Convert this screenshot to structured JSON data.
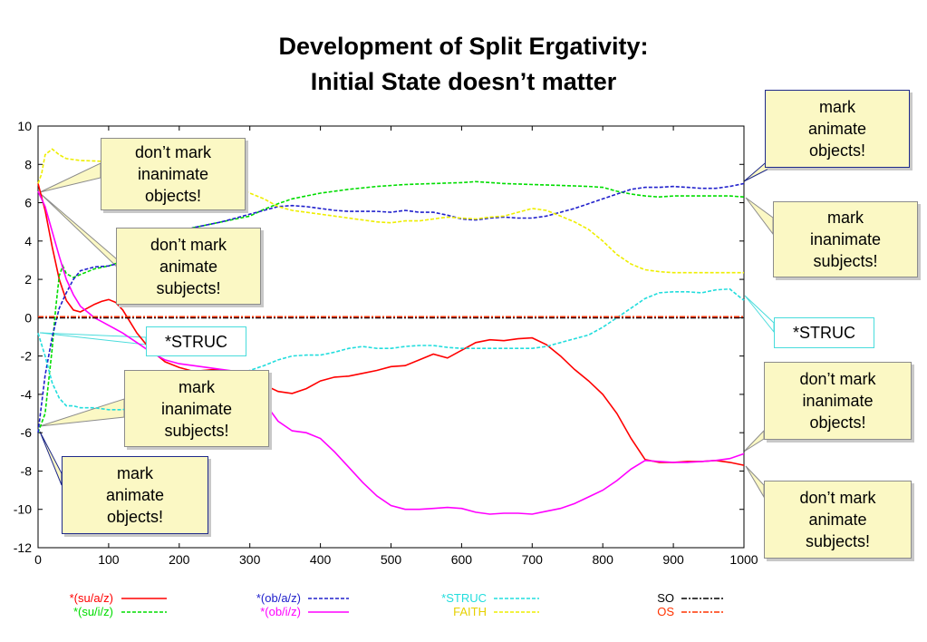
{
  "title": {
    "line1": "Development of Split Ergativity:",
    "line2": "Initial State doesn’t matter"
  },
  "chart_data": {
    "type": "line",
    "xlim": [
      0,
      1000
    ],
    "ylim": [
      -12,
      10
    ],
    "x_ticks": [
      "0",
      "100",
      "200",
      "300",
      "400",
      "500",
      "600",
      "700",
      "800",
      "900",
      "1000"
    ],
    "y_ticks": [
      "10",
      "8",
      "6",
      "4",
      "2",
      "0",
      "-2",
      "-4",
      "-6",
      "-8",
      "-10",
      "-12"
    ],
    "grid": false,
    "legend_position": "bottom",
    "series": [
      {
        "name": "*(su/a/z)",
        "color": "#ff0000",
        "dash": "solid",
        "x": [
          0,
          10,
          20,
          30,
          40,
          50,
          60,
          70,
          80,
          90,
          100,
          110,
          120,
          140,
          160,
          180,
          200,
          220,
          250,
          280,
          300,
          320,
          340,
          360,
          380,
          400,
          420,
          440,
          460,
          480,
          500,
          520,
          540,
          560,
          580,
          600,
          620,
          640,
          660,
          680,
          700,
          720,
          740,
          760,
          780,
          800,
          820,
          840,
          860,
          880,
          900,
          920,
          940,
          960,
          980,
          1000
        ],
        "y": [
          7.0,
          5.6,
          3.7,
          2.0,
          0.9,
          0.4,
          0.3,
          0.5,
          0.7,
          0.85,
          0.95,
          0.8,
          0.4,
          -0.8,
          -1.7,
          -2.3,
          -2.6,
          -2.8,
          -2.7,
          -2.9,
          -3.2,
          -3.5,
          -3.85,
          -3.95,
          -3.7,
          -3.3,
          -3.1,
          -3.05,
          -2.9,
          -2.75,
          -2.55,
          -2.5,
          -2.2,
          -1.9,
          -2.1,
          -1.7,
          -1.3,
          -1.15,
          -1.2,
          -1.1,
          -1.05,
          -1.4,
          -2.0,
          -2.7,
          -3.3,
          -4.0,
          -5.0,
          -6.3,
          -7.4,
          -7.55,
          -7.55,
          -7.5,
          -7.5,
          -7.45,
          -7.55,
          -7.7
        ]
      },
      {
        "name": "*(su/i/z)",
        "color": "#00dd00",
        "dash": "dashed",
        "x": [
          0,
          10,
          20,
          25,
          30,
          35,
          40,
          50,
          60,
          80,
          100,
          120,
          140,
          160,
          180,
          200,
          220,
          240,
          260,
          280,
          300,
          320,
          340,
          360,
          380,
          400,
          440,
          480,
          520,
          560,
          600,
          620,
          660,
          700,
          740,
          780,
          800,
          820,
          840,
          860,
          880,
          900,
          940,
          980,
          1000
        ],
        "y": [
          -6.0,
          -5.0,
          -1.6,
          0.5,
          2.2,
          2.7,
          2.3,
          2.1,
          2.25,
          2.55,
          2.7,
          2.95,
          3.3,
          3.7,
          4.1,
          4.45,
          4.7,
          4.85,
          5.0,
          5.15,
          5.3,
          5.65,
          5.95,
          6.2,
          6.35,
          6.5,
          6.7,
          6.85,
          6.95,
          7.0,
          7.05,
          7.1,
          7.0,
          6.95,
          6.9,
          6.85,
          6.8,
          6.6,
          6.45,
          6.35,
          6.3,
          6.35,
          6.35,
          6.35,
          6.3
        ]
      },
      {
        "name": "*(ob/a/z)",
        "color": "#2020cc",
        "dash": "dashed",
        "x": [
          0,
          10,
          20,
          30,
          40,
          50,
          60,
          80,
          100,
          120,
          140,
          160,
          180,
          200,
          220,
          240,
          260,
          280,
          300,
          320,
          340,
          360,
          380,
          400,
          420,
          440,
          460,
          480,
          500,
          520,
          540,
          560,
          580,
          600,
          620,
          640,
          660,
          680,
          700,
          720,
          740,
          760,
          780,
          800,
          820,
          840,
          860,
          880,
          900,
          920,
          940,
          960,
          980,
          1000
        ],
        "y": [
          -6.0,
          -3.0,
          -1.0,
          0.5,
          1.3,
          2.0,
          2.45,
          2.65,
          2.7,
          2.9,
          3.3,
          3.7,
          4.1,
          4.45,
          4.7,
          4.85,
          5.0,
          5.2,
          5.4,
          5.6,
          5.8,
          5.85,
          5.8,
          5.7,
          5.6,
          5.55,
          5.55,
          5.55,
          5.5,
          5.6,
          5.5,
          5.5,
          5.35,
          5.15,
          5.1,
          5.2,
          5.25,
          5.2,
          5.2,
          5.3,
          5.5,
          5.7,
          5.95,
          6.2,
          6.45,
          6.7,
          6.8,
          6.8,
          6.85,
          6.8,
          6.75,
          6.75,
          6.85,
          7.0
        ]
      },
      {
        "name": "*(ob/i/z)",
        "color": "#ff00ff",
        "dash": "solid",
        "x": [
          0,
          10,
          20,
          30,
          40,
          50,
          60,
          70,
          80,
          90,
          100,
          120,
          140,
          160,
          180,
          200,
          220,
          240,
          260,
          280,
          300,
          320,
          340,
          360,
          380,
          400,
          420,
          440,
          460,
          480,
          500,
          520,
          540,
          560,
          580,
          600,
          620,
          640,
          660,
          680,
          700,
          720,
          740,
          760,
          780,
          800,
          820,
          840,
          860,
          880,
          900,
          920,
          940,
          960,
          980,
          1000
        ],
        "y": [
          6.6,
          5.8,
          4.5,
          3.2,
          2.0,
          1.2,
          0.6,
          0.3,
          0.0,
          -0.2,
          -0.4,
          -0.8,
          -1.3,
          -1.8,
          -2.2,
          -2.4,
          -2.5,
          -2.6,
          -2.7,
          -2.8,
          -3.4,
          -4.4,
          -5.4,
          -5.9,
          -6.0,
          -6.3,
          -7.0,
          -7.8,
          -8.6,
          -9.3,
          -9.8,
          -10.0,
          -10.0,
          -9.95,
          -9.9,
          -9.95,
          -10.15,
          -10.25,
          -10.2,
          -10.2,
          -10.25,
          -10.1,
          -9.95,
          -9.7,
          -9.35,
          -9.0,
          -8.5,
          -7.9,
          -7.45,
          -7.5,
          -7.55,
          -7.55,
          -7.5,
          -7.45,
          -7.35,
          -7.1
        ]
      },
      {
        "name": "*STRUC",
        "color": "#22dddd",
        "dash": "dashed",
        "x": [
          0,
          10,
          20,
          30,
          40,
          50,
          60,
          80,
          100,
          120,
          140,
          160,
          180,
          200,
          220,
          240,
          260,
          280,
          300,
          320,
          340,
          360,
          380,
          400,
          420,
          440,
          460,
          480,
          500,
          520,
          540,
          560,
          580,
          600,
          620,
          640,
          660,
          680,
          700,
          720,
          740,
          760,
          780,
          800,
          820,
          840,
          860,
          880,
          900,
          920,
          940,
          960,
          980,
          1000
        ],
        "y": [
          -0.8,
          -2.0,
          -3.4,
          -4.2,
          -4.6,
          -4.6,
          -4.7,
          -4.7,
          -4.8,
          -4.8,
          -4.6,
          -4.3,
          -4.0,
          -3.8,
          -3.5,
          -3.2,
          -3.0,
          -2.9,
          -2.75,
          -2.5,
          -2.2,
          -2.0,
          -1.95,
          -1.95,
          -1.8,
          -1.6,
          -1.5,
          -1.6,
          -1.6,
          -1.5,
          -1.45,
          -1.45,
          -1.55,
          -1.6,
          -1.6,
          -1.6,
          -1.6,
          -1.6,
          -1.6,
          -1.5,
          -1.3,
          -1.1,
          -0.9,
          -0.5,
          0.0,
          0.5,
          1.0,
          1.3,
          1.35,
          1.35,
          1.3,
          1.45,
          1.5,
          0.9
        ]
      },
      {
        "name": "FAITH",
        "color": "#eeee00",
        "dash": "dashed",
        "x": [
          0,
          5,
          10,
          20,
          30,
          40,
          60,
          100,
          140,
          160,
          180,
          200,
          220,
          240,
          260,
          280,
          300,
          320,
          340,
          360,
          380,
          400,
          420,
          440,
          460,
          480,
          500,
          520,
          540,
          560,
          580,
          600,
          620,
          640,
          660,
          680,
          700,
          720,
          740,
          760,
          780,
          800,
          820,
          840,
          860,
          880,
          900,
          940,
          980,
          1000
        ],
        "y": [
          7.0,
          7.5,
          8.5,
          8.8,
          8.5,
          8.3,
          8.2,
          8.15,
          8.1,
          8.0,
          7.9,
          7.8,
          7.6,
          7.4,
          7.1,
          6.8,
          6.5,
          6.2,
          5.8,
          5.6,
          5.5,
          5.4,
          5.3,
          5.2,
          5.1,
          5.0,
          4.95,
          5.05,
          5.05,
          5.15,
          5.25,
          5.2,
          5.15,
          5.25,
          5.3,
          5.5,
          5.7,
          5.6,
          5.3,
          5.0,
          4.6,
          4.0,
          3.3,
          2.8,
          2.5,
          2.4,
          2.35,
          2.35,
          2.35,
          2.35
        ]
      },
      {
        "name": "SO",
        "color": "#000000",
        "dash": "dashdot",
        "x": [
          0,
          100,
          200,
          300,
          400,
          500,
          600,
          700,
          800,
          900,
          1000
        ],
        "y": [
          0,
          0,
          0,
          0,
          0,
          0,
          0,
          0,
          0,
          0,
          0
        ]
      },
      {
        "name": "OS",
        "color": "#ff3300",
        "dash": "dashdot",
        "x": [
          0,
          100,
          200,
          300,
          400,
          500,
          600,
          700,
          800,
          900,
          1000
        ],
        "y": [
          0.05,
          0.05,
          0.05,
          0.05,
          0.05,
          0.05,
          0.05,
          0.05,
          0.05,
          0.05,
          0.05
        ]
      }
    ]
  },
  "callouts": [
    {
      "id": "left1",
      "text": "don’t mark\ninanimate\nobjects!"
    },
    {
      "id": "left2",
      "text": "don’t mark\nanimate\nsubjects!"
    },
    {
      "id": "left3",
      "text": "*STRUC"
    },
    {
      "id": "left4",
      "text": "mark\ninanimate\nsubjects!"
    },
    {
      "id": "left5",
      "text": "mark\nanimate\nobjects!"
    },
    {
      "id": "right1",
      "text": "mark\nanimate\nobjects!"
    },
    {
      "id": "right2",
      "text": "mark\ninanimate\nsubjects!"
    },
    {
      "id": "right3",
      "text": "*STRUC"
    },
    {
      "id": "right4",
      "text": "don’t mark\ninanimate\nobjects!"
    },
    {
      "id": "right5",
      "text": "don’t mark\nanimate\nsubjects!"
    }
  ]
}
